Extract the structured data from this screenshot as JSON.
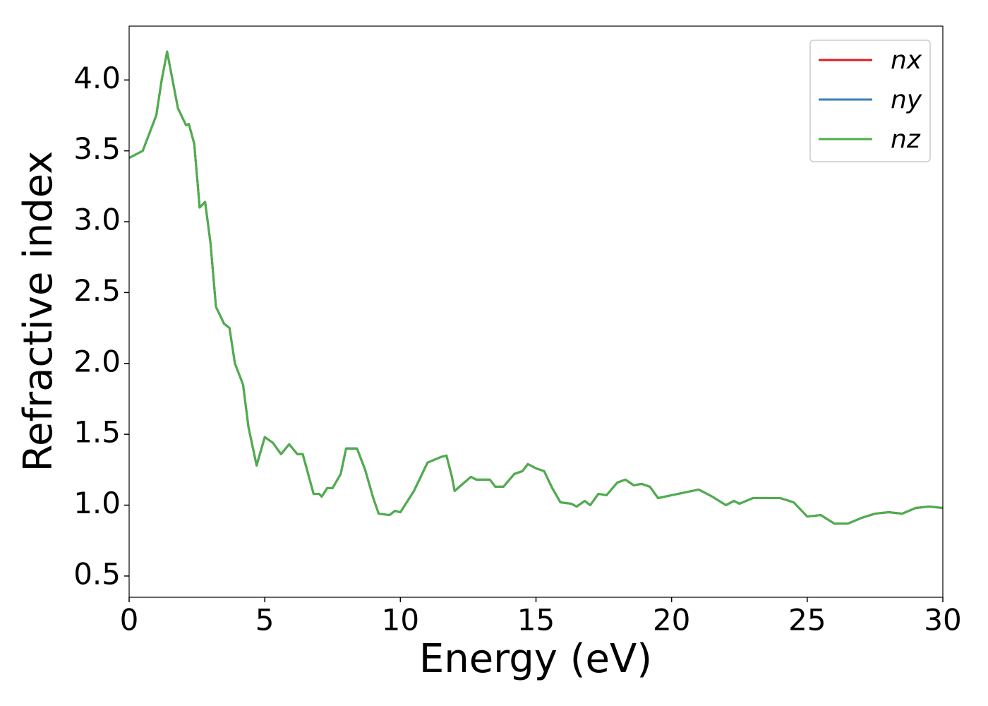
{
  "chart_data": {
    "type": "line",
    "xlabel": "Energy (eV)",
    "ylabel": "Refractive index",
    "x": [
      0,
      0.5,
      1.0,
      1.2,
      1.4,
      1.6,
      1.8,
      2.0,
      2.1,
      2.2,
      2.4,
      2.6,
      2.8,
      3.0,
      3.2,
      3.5,
      3.7,
      3.9,
      4.2,
      4.4,
      4.7,
      5.0,
      5.3,
      5.6,
      5.9,
      6.2,
      6.4,
      6.8,
      7.0,
      7.1,
      7.3,
      7.5,
      7.8,
      8.0,
      8.2,
      8.4,
      8.7,
      9.0,
      9.2,
      9.6,
      9.8,
      10.0,
      10.5,
      11.0,
      11.5,
      11.7,
      11.9,
      12.0,
      12.3,
      12.6,
      12.8,
      13.0,
      13.3,
      13.5,
      13.8,
      14.2,
      14.5,
      14.7,
      15.0,
      15.3,
      15.6,
      15.9,
      16.3,
      16.5,
      16.8,
      17.0,
      17.3,
      17.6,
      18.0,
      18.3,
      18.6,
      18.9,
      19.2,
      19.5,
      20.0,
      20.5,
      21.0,
      21.5,
      22.0,
      22.3,
      22.5,
      23.0,
      23.5,
      24.0,
      24.5,
      25.0,
      25.5,
      26.0,
      26.5,
      27.0,
      27.5,
      28.0,
      28.5,
      29.0,
      29.5,
      30.0
    ],
    "series": [
      {
        "name": "nx",
        "color": "#e41a1c",
        "values": [
          3.45,
          3.5,
          3.75,
          4.0,
          4.2,
          4.0,
          3.8,
          3.72,
          3.68,
          3.69,
          3.55,
          3.1,
          3.14,
          2.85,
          2.4,
          2.28,
          2.25,
          2.0,
          1.85,
          1.55,
          1.28,
          1.48,
          1.44,
          1.36,
          1.43,
          1.36,
          1.36,
          1.08,
          1.08,
          1.06,
          1.12,
          1.12,
          1.22,
          1.4,
          1.4,
          1.4,
          1.25,
          1.05,
          0.94,
          0.93,
          0.96,
          0.95,
          1.1,
          1.3,
          1.34,
          1.35,
          1.2,
          1.1,
          1.15,
          1.2,
          1.18,
          1.18,
          1.18,
          1.13,
          1.13,
          1.22,
          1.24,
          1.29,
          1.26,
          1.24,
          1.12,
          1.02,
          1.01,
          0.99,
          1.03,
          1.0,
          1.08,
          1.07,
          1.16,
          1.18,
          1.14,
          1.15,
          1.13,
          1.05,
          1.07,
          1.09,
          1.11,
          1.06,
          1.0,
          1.03,
          1.01,
          1.05,
          1.05,
          1.05,
          1.02,
          0.92,
          0.93,
          0.87,
          0.87,
          0.91,
          0.94,
          0.95,
          0.94,
          0.98,
          0.99,
          0.98
        ]
      },
      {
        "name": "ny",
        "color": "#377eb8",
        "values": [
          3.45,
          3.5,
          3.75,
          4.0,
          4.2,
          4.0,
          3.8,
          3.72,
          3.68,
          3.69,
          3.55,
          3.1,
          3.14,
          2.85,
          2.4,
          2.28,
          2.25,
          2.0,
          1.85,
          1.55,
          1.28,
          1.48,
          1.44,
          1.36,
          1.43,
          1.36,
          1.36,
          1.08,
          1.08,
          1.06,
          1.12,
          1.12,
          1.22,
          1.4,
          1.4,
          1.4,
          1.25,
          1.05,
          0.94,
          0.93,
          0.96,
          0.95,
          1.1,
          1.3,
          1.34,
          1.35,
          1.2,
          1.1,
          1.15,
          1.2,
          1.18,
          1.18,
          1.18,
          1.13,
          1.13,
          1.22,
          1.24,
          1.29,
          1.26,
          1.24,
          1.12,
          1.02,
          1.01,
          0.99,
          1.03,
          1.0,
          1.08,
          1.07,
          1.16,
          1.18,
          1.14,
          1.15,
          1.13,
          1.05,
          1.07,
          1.09,
          1.11,
          1.06,
          1.0,
          1.03,
          1.01,
          1.05,
          1.05,
          1.05,
          1.02,
          0.92,
          0.93,
          0.87,
          0.87,
          0.91,
          0.94,
          0.95,
          0.94,
          0.98,
          0.99,
          0.98
        ]
      },
      {
        "name": "nz",
        "color": "#4daf4a",
        "values": [
          3.45,
          3.5,
          3.75,
          4.0,
          4.2,
          4.0,
          3.8,
          3.72,
          3.68,
          3.69,
          3.55,
          3.1,
          3.14,
          2.85,
          2.4,
          2.28,
          2.25,
          2.0,
          1.85,
          1.55,
          1.28,
          1.48,
          1.44,
          1.36,
          1.43,
          1.36,
          1.36,
          1.08,
          1.08,
          1.06,
          1.12,
          1.12,
          1.22,
          1.4,
          1.4,
          1.4,
          1.25,
          1.05,
          0.94,
          0.93,
          0.96,
          0.95,
          1.1,
          1.3,
          1.34,
          1.35,
          1.2,
          1.1,
          1.15,
          1.2,
          1.18,
          1.18,
          1.18,
          1.13,
          1.13,
          1.22,
          1.24,
          1.29,
          1.26,
          1.24,
          1.12,
          1.02,
          1.01,
          0.99,
          1.03,
          1.0,
          1.08,
          1.07,
          1.16,
          1.18,
          1.14,
          1.15,
          1.13,
          1.05,
          1.07,
          1.09,
          1.11,
          1.06,
          1.0,
          1.03,
          1.01,
          1.05,
          1.05,
          1.05,
          1.02,
          0.92,
          0.93,
          0.87,
          0.87,
          0.91,
          0.94,
          0.95,
          0.94,
          0.98,
          0.99,
          0.98
        ]
      }
    ],
    "xlim": [
      0,
      30
    ],
    "xticks": [
      0,
      5,
      10,
      15,
      20,
      25,
      30
    ],
    "ylim": [
      0.35,
      4.38
    ],
    "yticks": [
      0.5,
      {
        "value": 1,
        "label": "1.0"
      },
      1.5,
      {
        "value": 2,
        "label": "2.0"
      },
      2.5,
      {
        "value": 3,
        "label": "3.0"
      },
      3.5,
      {
        "value": 4,
        "label": "4.0"
      }
    ],
    "legend": "upper right",
    "grid": false
  }
}
